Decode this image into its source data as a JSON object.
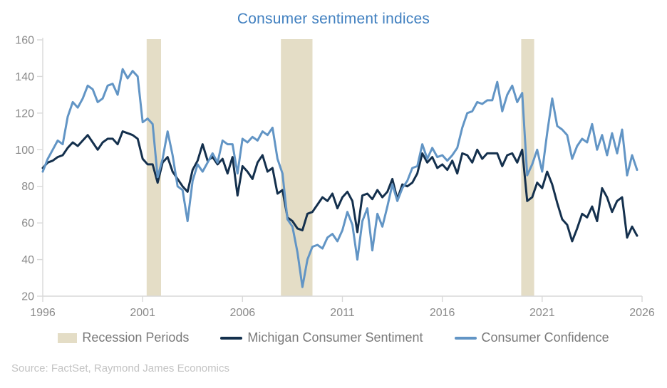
{
  "title": "Consumer sentiment indices",
  "source": "Source: FactSet, Raymond James Economics",
  "colors": {
    "title": "#4180c0",
    "michigan_line": "#14304d",
    "confidence_line": "#6295c5",
    "recession_band": "#e4ddc6",
    "axis_line": "#d9d9d9",
    "axis_label": "#8a8a8a",
    "legend_text": "#7a7a7a",
    "source_text": "#c3c3c3"
  },
  "legend": {
    "items": [
      {
        "label": "Recession Periods",
        "swatch": "band",
        "color": "#e4ddc6"
      },
      {
        "label": "Michigan Consumer Sentiment",
        "swatch": "line",
        "color": "#14304d"
      },
      {
        "label": "Consumer Confidence",
        "swatch": "line",
        "color": "#6295c5"
      }
    ]
  },
  "chart_data": {
    "type": "line",
    "title": "Consumer sentiment indices",
    "xlabel": "",
    "ylabel": "",
    "xlim": [
      1996,
      2026
    ],
    "ylim": [
      20,
      160
    ],
    "x_ticks": [
      1996,
      2001,
      2006,
      2011,
      2016,
      2021,
      2026
    ],
    "y_ticks": [
      20,
      40,
      60,
      80,
      100,
      120,
      140,
      160
    ],
    "grid": false,
    "legend_position": "bottom",
    "recession_bands": [
      {
        "start": 2001.2,
        "end": 2001.92
      },
      {
        "start": 2007.92,
        "end": 2009.5
      },
      {
        "start": 2019.95,
        "end": 2020.6
      }
    ],
    "x": [
      1996.0,
      1996.25,
      1996.5,
      1996.75,
      1997.0,
      1997.25,
      1997.5,
      1997.75,
      1998.0,
      1998.25,
      1998.5,
      1998.75,
      1999.0,
      1999.25,
      1999.5,
      1999.75,
      2000.0,
      2000.25,
      2000.5,
      2000.75,
      2001.0,
      2001.25,
      2001.5,
      2001.75,
      2002.0,
      2002.25,
      2002.5,
      2002.75,
      2003.0,
      2003.25,
      2003.5,
      2003.75,
      2004.0,
      2004.25,
      2004.5,
      2004.75,
      2005.0,
      2005.25,
      2005.5,
      2005.75,
      2006.0,
      2006.25,
      2006.5,
      2006.75,
      2007.0,
      2007.25,
      2007.5,
      2007.75,
      2008.0,
      2008.25,
      2008.5,
      2008.75,
      2009.0,
      2009.25,
      2009.5,
      2009.75,
      2010.0,
      2010.25,
      2010.5,
      2010.75,
      2011.0,
      2011.25,
      2011.5,
      2011.75,
      2012.0,
      2012.25,
      2012.5,
      2012.75,
      2013.0,
      2013.25,
      2013.5,
      2013.75,
      2014.0,
      2014.25,
      2014.5,
      2014.75,
      2015.0,
      2015.25,
      2015.5,
      2015.75,
      2016.0,
      2016.25,
      2016.5,
      2016.75,
      2017.0,
      2017.25,
      2017.5,
      2017.75,
      2018.0,
      2018.25,
      2018.5,
      2018.75,
      2019.0,
      2019.25,
      2019.5,
      2019.75,
      2020.0,
      2020.25,
      2020.5,
      2020.75,
      2021.0,
      2021.25,
      2021.5,
      2021.75,
      2022.0,
      2022.25,
      2022.5,
      2022.75,
      2023.0,
      2023.25,
      2023.5,
      2023.75,
      2024.0,
      2024.25,
      2024.5,
      2024.75,
      2025.0,
      2025.25,
      2025.5,
      2025.75
    ],
    "series": [
      {
        "name": "Michigan Consumer Sentiment",
        "color": "#14304d",
        "values": [
          90,
          93,
          94,
          96,
          97,
          101,
          104,
          102,
          105,
          108,
          104,
          100,
          104,
          106,
          106,
          103,
          110,
          109,
          108,
          106,
          95,
          92,
          92,
          82,
          93,
          96,
          88,
          84,
          80,
          77,
          89,
          94,
          103,
          94,
          96,
          92,
          95,
          87,
          96,
          75,
          91,
          88,
          84,
          93,
          97,
          88,
          90,
          76,
          78,
          63,
          61,
          57,
          56,
          65,
          66,
          70,
          74,
          72,
          76,
          68,
          74,
          77,
          72,
          55,
          75,
          76,
          73,
          78,
          74,
          77,
          84,
          73,
          81,
          80,
          82,
          87,
          98,
          93,
          96,
          90,
          92,
          89,
          94,
          87,
          98,
          97,
          93,
          100,
          95,
          98,
          98,
          98,
          91,
          97,
          98,
          93,
          100,
          72,
          74,
          82,
          79,
          88,
          81,
          71,
          62,
          59,
          50,
          57,
          65,
          63,
          69,
          61,
          79,
          74,
          66,
          72,
          74,
          52,
          58,
          53
        ]
      },
      {
        "name": "Consumer Confidence",
        "color": "#6295c5",
        "values": [
          88,
          95,
          100,
          105,
          103,
          118,
          126,
          123,
          128,
          135,
          133,
          126,
          128,
          135,
          136,
          130,
          144,
          139,
          143,
          140,
          115,
          117,
          114,
          85,
          95,
          110,
          97,
          80,
          78,
          61,
          83,
          92,
          88,
          93,
          98,
          93,
          105,
          103,
          103,
          87,
          106,
          104,
          107,
          105,
          110,
          108,
          112,
          95,
          87,
          62,
          58,
          44,
          25,
          40,
          47,
          48,
          46,
          52,
          54,
          50,
          56,
          66,
          59,
          40,
          61,
          68,
          45,
          65,
          58,
          69,
          81,
          72,
          79,
          83,
          90,
          91,
          103,
          95,
          101,
          96,
          97,
          94,
          97,
          101,
          112,
          120,
          121,
          126,
          125,
          127,
          127,
          137,
          121,
          130,
          135,
          126,
          131,
          86,
          92,
          100,
          88,
          109,
          128,
          113,
          111,
          108,
          95,
          102,
          106,
          104,
          114,
          100,
          108,
          97,
          109,
          98,
          111,
          86,
          97,
          89
        ]
      }
    ]
  }
}
